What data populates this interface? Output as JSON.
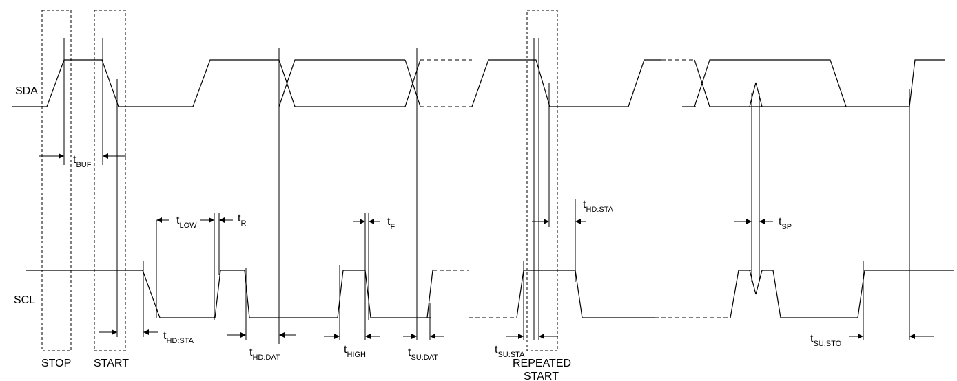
{
  "signals": {
    "sda": "SDA",
    "scl": "SCL"
  },
  "conditions": {
    "stop": "STOP",
    "start": "START",
    "repeated_start_1": "REPEATED",
    "repeated_start_2": "START"
  },
  "timing": {
    "t_buf": {
      "t": "t",
      "sub": "BUF"
    },
    "t_low": {
      "t": "t",
      "sub": "LOW"
    },
    "t_r": {
      "t": "t",
      "sub": "R"
    },
    "t_f": {
      "t": "t",
      "sub": "F"
    },
    "t_hd_sta_1": {
      "t": "t",
      "sub": "HD:STA"
    },
    "t_hd_sta_2": {
      "t": "t",
      "sub": "HD:STA"
    },
    "t_hd_dat": {
      "t": "t",
      "sub": "HD:DAT"
    },
    "t_high": {
      "t": "t",
      "sub": "HIGH"
    },
    "t_su_dat": {
      "t": "t",
      "sub": "SU:DAT"
    },
    "t_su_sta": {
      "t": "t",
      "sub": "SU:STA"
    },
    "t_sp": {
      "t": "t",
      "sub": "SP"
    },
    "t_su_sto": {
      "t": "t",
      "sub": "SU:STO"
    }
  }
}
